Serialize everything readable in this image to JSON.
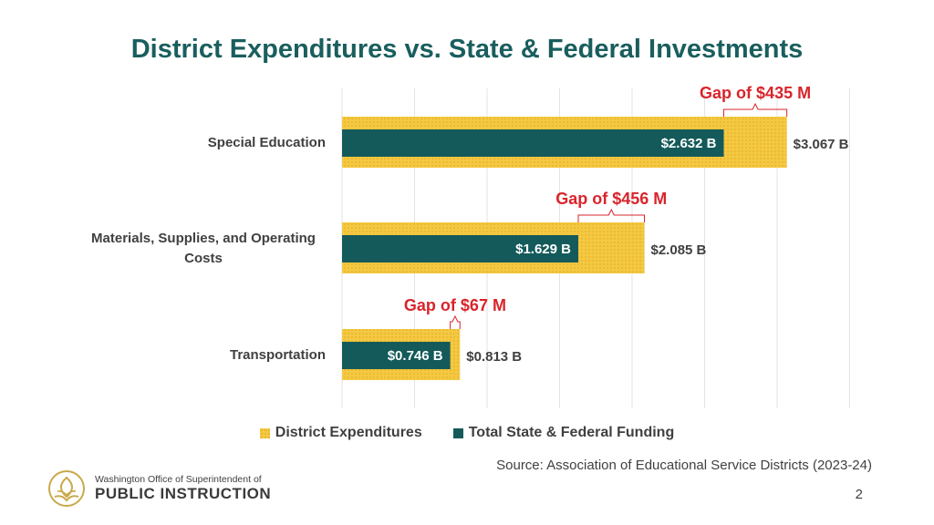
{
  "chart_data": {
    "type": "bar",
    "orientation": "horizontal",
    "title": "District Expenditures vs. State & Federal Investments",
    "categories": [
      "Special Education",
      "Materials, Supplies, and Operating Costs",
      "Transportation"
    ],
    "category_lines": [
      [
        "Special Education"
      ],
      [
        "Materials, Supplies, and Operating",
        "Costs"
      ],
      [
        "Transportation"
      ]
    ],
    "series": [
      {
        "name": "District Expenditures",
        "values": [
          3.067,
          2.085,
          0.813
        ],
        "labels": [
          "$3.067 B",
          "$2.085 B",
          "$0.813 B"
        ],
        "color": "#f5c842"
      },
      {
        "name": "Total State & Federal Funding",
        "values": [
          2.632,
          1.629,
          0.746
        ],
        "labels": [
          "$2.632 B",
          "$1.629 B",
          "$0.746 B"
        ],
        "color": "#145a5a"
      }
    ],
    "gaps": [
      "Gap of $435 M",
      "Gap of $456 M",
      "Gap of $67 M"
    ],
    "xlim": [
      0,
      3.5
    ],
    "grid": true,
    "legend_position": "bottom"
  },
  "source": "Source: Association of Educational Service Districts (2023-24)",
  "page_number": "2",
  "logo": {
    "line1": "Washington Office of Superintendent of",
    "line2": "PUBLIC INSTRUCTION"
  },
  "colors": {
    "title": "#1a5e5e",
    "gap": "#d9242b",
    "bracket": "#d9242b"
  }
}
